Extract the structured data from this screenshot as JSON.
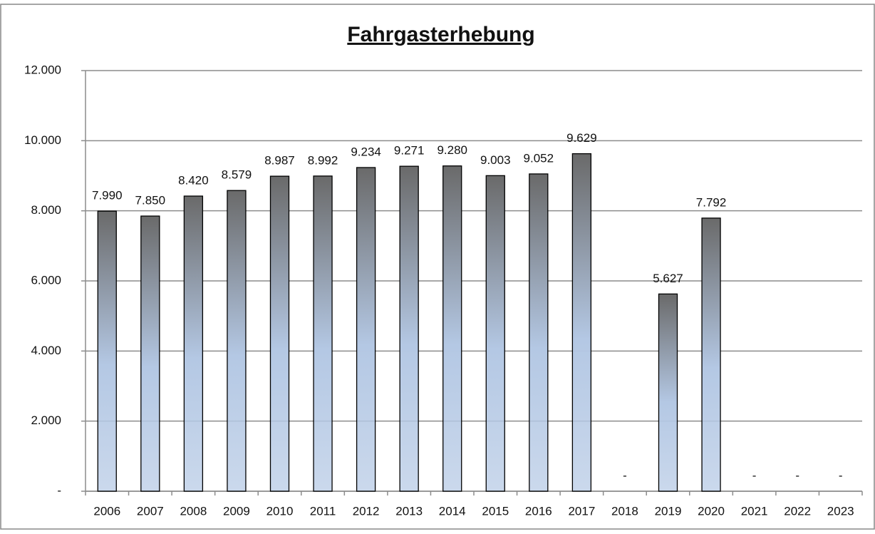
{
  "chart_data": {
    "type": "bar",
    "title": "Fahrgasterhebung",
    "categories": [
      "2006",
      "2007",
      "2008",
      "2009",
      "2010",
      "2011",
      "2012",
      "2013",
      "2014",
      "2015",
      "2016",
      "2017",
      "2018",
      "2019",
      "2020",
      "2021",
      "2022",
      "2023"
    ],
    "values": [
      7990,
      7850,
      8420,
      8579,
      8987,
      8992,
      9234,
      9271,
      9280,
      9003,
      9052,
      9629,
      0,
      5627,
      7792,
      0,
      0,
      0
    ],
    "value_labels": [
      "7.990",
      "7.850",
      "8.420",
      "8.579",
      "8.987",
      "8.992",
      "9.234",
      "9.271",
      "9.280",
      "9.003",
      "9.052",
      "9.629",
      "-",
      "5.627",
      "7.792",
      "-",
      "-",
      "-"
    ],
    "color": "#b4c8e4",
    "ylim": [
      0,
      12000
    ],
    "yticks": [
      {
        "value": 0,
        "label": "-"
      },
      {
        "value": 2000,
        "label": "2.000"
      },
      {
        "value": 4000,
        "label": "4.000"
      },
      {
        "value": 6000,
        "label": "6.000"
      },
      {
        "value": 8000,
        "label": "8.000"
      },
      {
        "value": 10000,
        "label": "10.000"
      },
      {
        "value": 12000,
        "label": "12.000"
      }
    ],
    "grid": true
  }
}
